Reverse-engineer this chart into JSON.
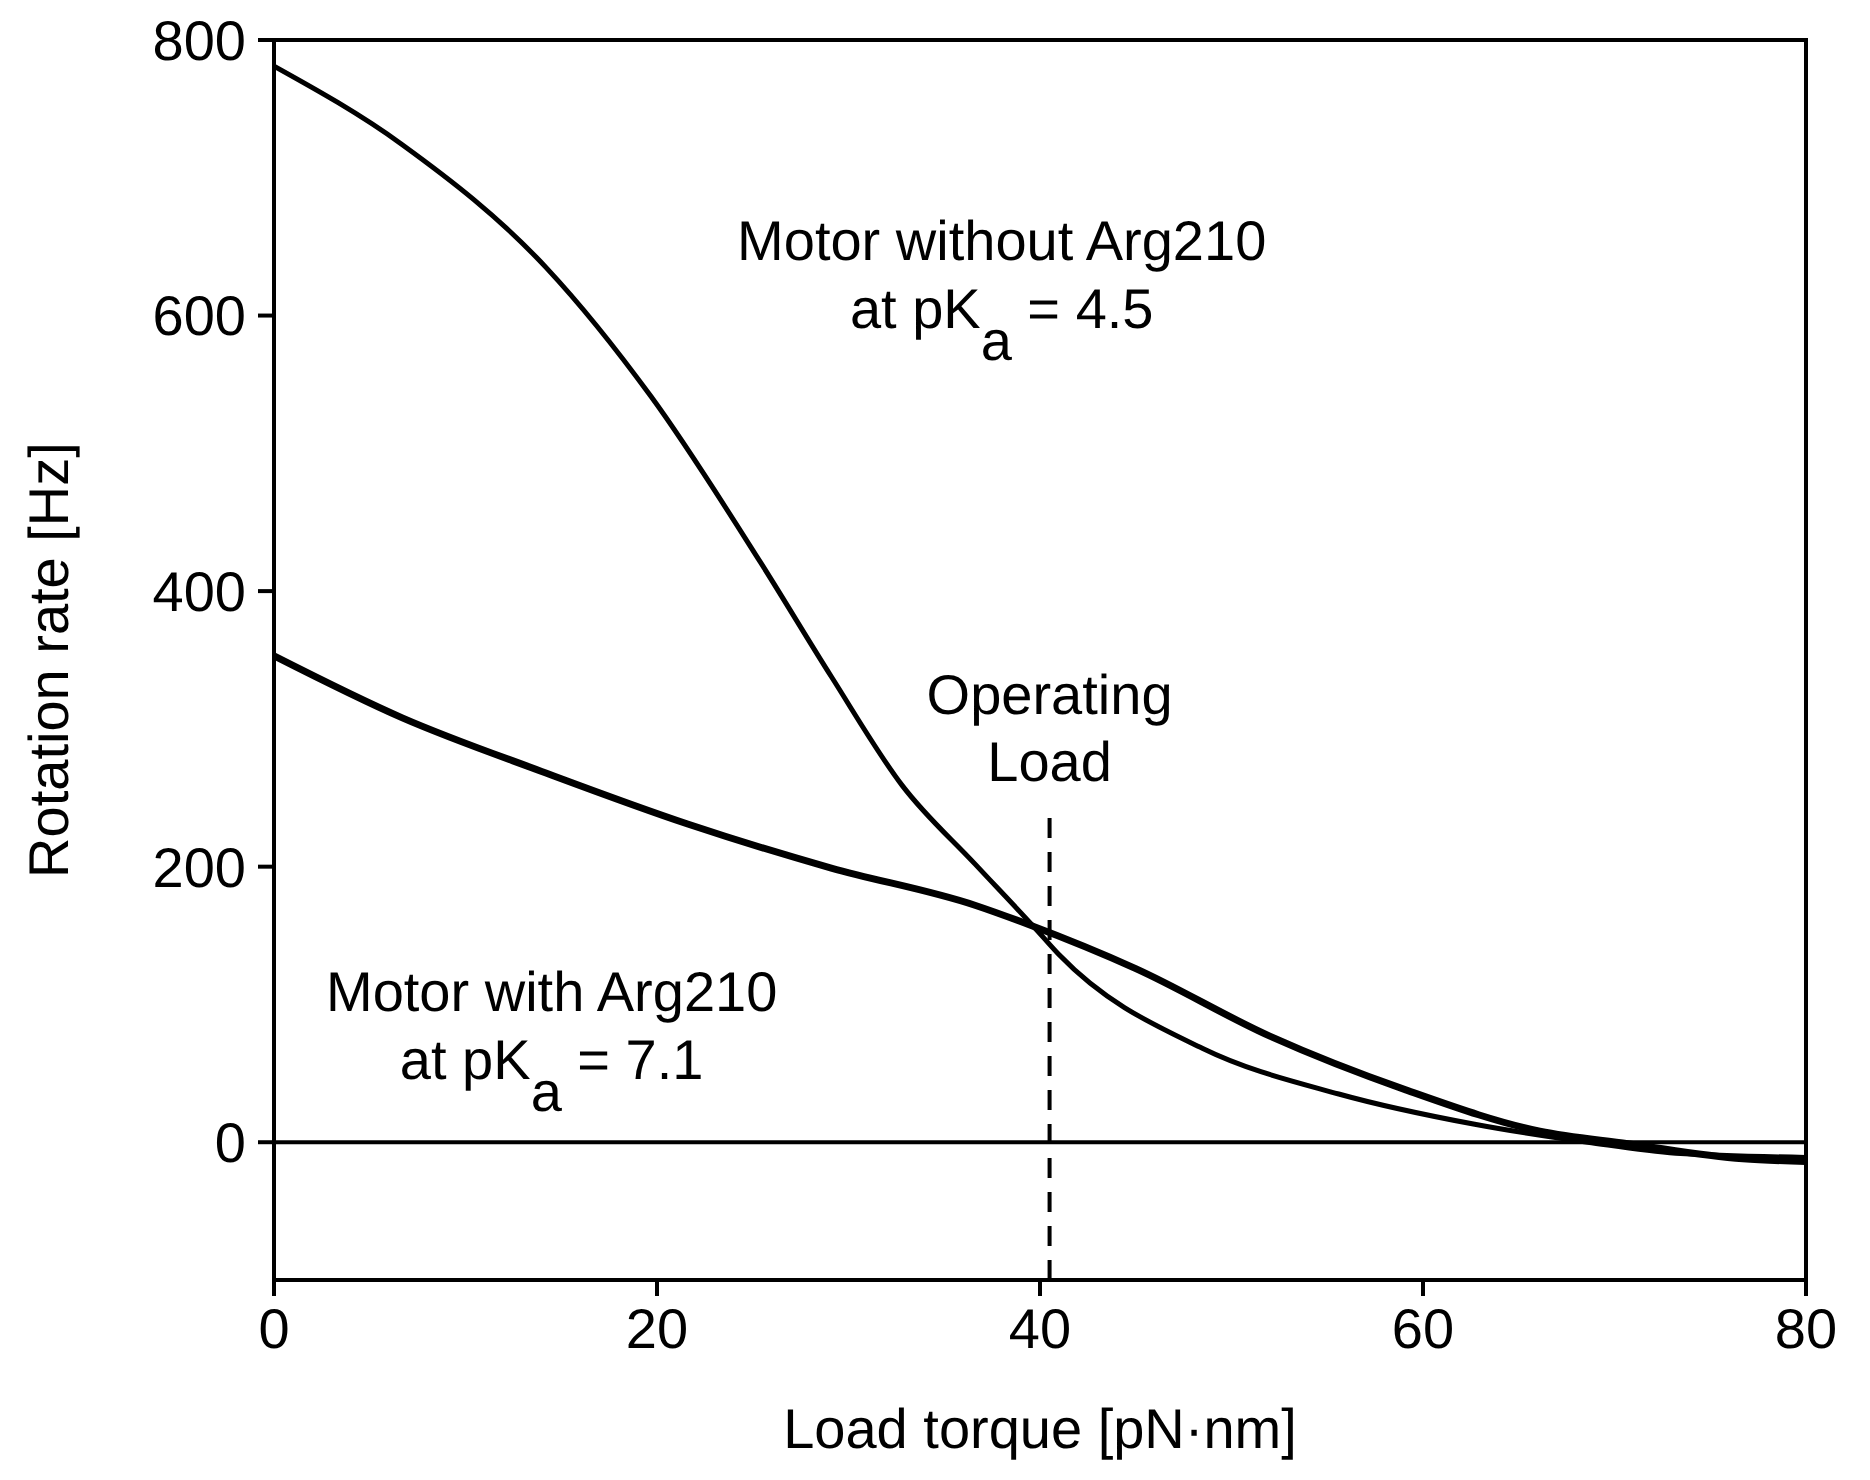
{
  "chart_data": {
    "type": "line",
    "xlabel": "Load torque [pN·nm]",
    "ylabel": "Rotation rate [Hz]",
    "xlim": [
      0,
      80
    ],
    "xticks": [
      0,
      20,
      40,
      60,
      80
    ],
    "ylim": [
      -100,
      800
    ],
    "yticks": [
      0,
      200,
      400,
      600,
      800
    ],
    "grid": false,
    "legend": false,
    "marker": "none",
    "line_style": "solid",
    "series": [
      {
        "name": "Motor without Arg210\nat pK$_{a}$ = 4.5",
        "color": "#000000",
        "x": [
          0,
          6.7,
          14.2,
          19.7,
          25.4,
          29.1,
          32.8,
          36.6,
          39.7,
          41,
          48.5,
          55.6,
          62.7,
          68.6,
          73.2,
          80
        ],
        "values": [
          781,
          724,
          635,
          541,
          421,
          338,
          259,
          202,
          156,
          136,
          68,
          35,
          13,
          0,
          -8,
          -11
        ]
      },
      {
        "name": "Motor with Arg210\nat pK$_{a}$ = 7.1",
        "color": "#000000",
        "x": [
          0,
          6.7,
          14.2,
          21.6,
          29.1,
          36.6,
          39.4,
          45,
          52,
          59.1,
          66.1,
          70.7,
          76.7,
          80
        ],
        "values": [
          353,
          308,
          268,
          231,
          199,
          172,
          158,
          126,
          77,
          38,
          8,
          -1,
          -12,
          -14
        ]
      }
    ],
    "ref_lines": [
      {
        "axis": "y",
        "value": 0,
        "color": "#000000",
        "line_style": "solid"
      },
      {
        "axis": "x",
        "value": 40.5,
        "label": "Operating\nLoad",
        "color": "#000000",
        "line_style": "dashed"
      }
    ]
  }
}
